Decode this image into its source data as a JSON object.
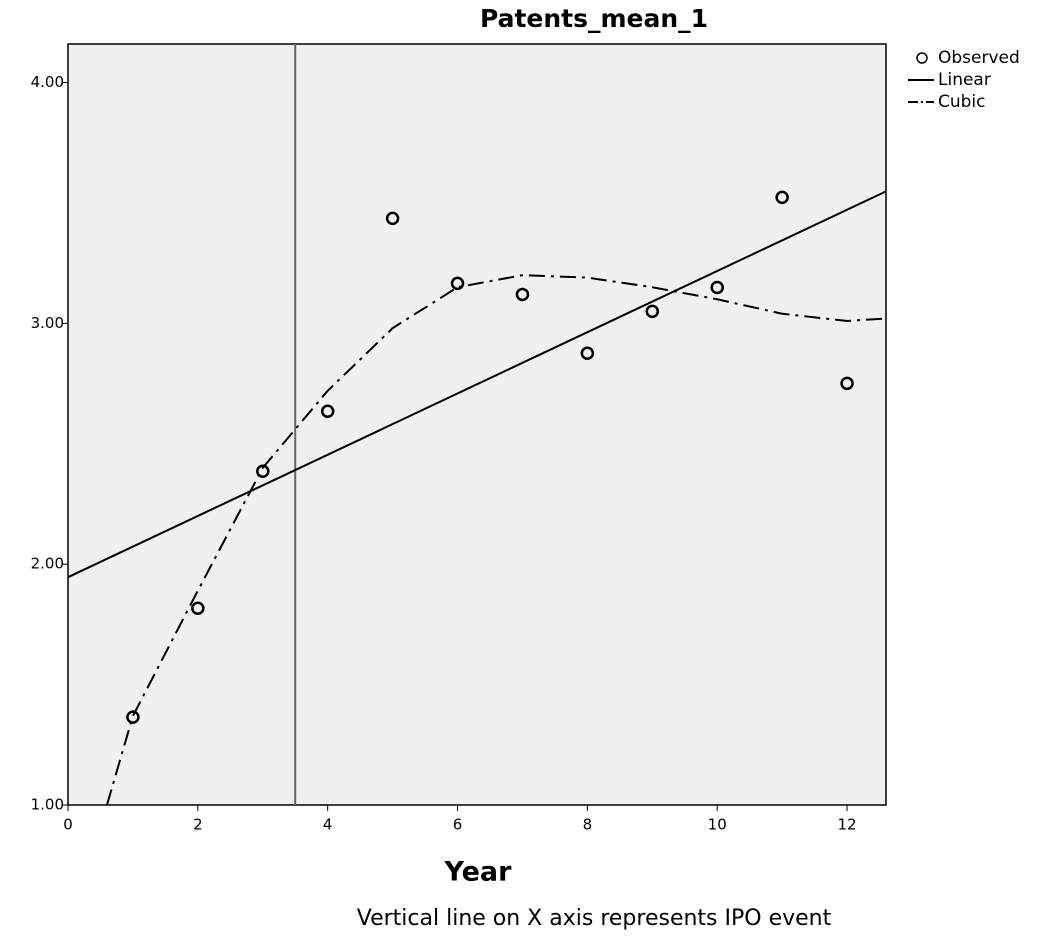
{
  "chart_data": {
    "type": "scatter",
    "title": "Patents_mean_1",
    "x_label": "Year",
    "note": "Vertical line on X axis represents IPO event",
    "xlim": [
      0,
      12.6
    ],
    "ylim": [
      1,
      4.16
    ],
    "xticks": [
      0,
      2,
      4,
      6,
      8,
      10,
      12
    ],
    "yticks": [
      {
        "value": 1,
        "label": "1.00"
      },
      {
        "value": 2,
        "label": "2.00"
      },
      {
        "value": 3,
        "label": "3.00"
      },
      {
        "value": 4,
        "label": "4.00"
      }
    ],
    "vlines": [
      3.5
    ],
    "background": "#f0f0f0",
    "series": [
      {
        "name": "Observed",
        "type": "scatter",
        "color": "#000000",
        "x": [
          1,
          2,
          3,
          4,
          5,
          6,
          7,
          8,
          9,
          10,
          11,
          12
        ],
        "values": [
          1.365,
          1.817,
          2.386,
          2.635,
          3.436,
          3.166,
          3.12,
          2.876,
          3.05,
          3.149,
          3.523,
          2.751
        ]
      },
      {
        "name": "Linear",
        "type": "line",
        "color": "#000000",
        "x": [
          0,
          12.6
        ],
        "values": [
          1.946,
          3.548
        ]
      },
      {
        "name": "Cubic",
        "type": "line",
        "dash": "dashdot",
        "color": "#000000",
        "x": [
          0.6,
          1,
          2,
          3,
          4,
          5,
          6,
          7,
          8,
          9,
          10,
          11,
          12,
          12.6
        ],
        "values": [
          1.0,
          1.37,
          1.89,
          2.4,
          2.72,
          2.98,
          3.15,
          3.2,
          3.19,
          3.15,
          3.1,
          3.04,
          3.01,
          3.02
        ]
      }
    ]
  }
}
